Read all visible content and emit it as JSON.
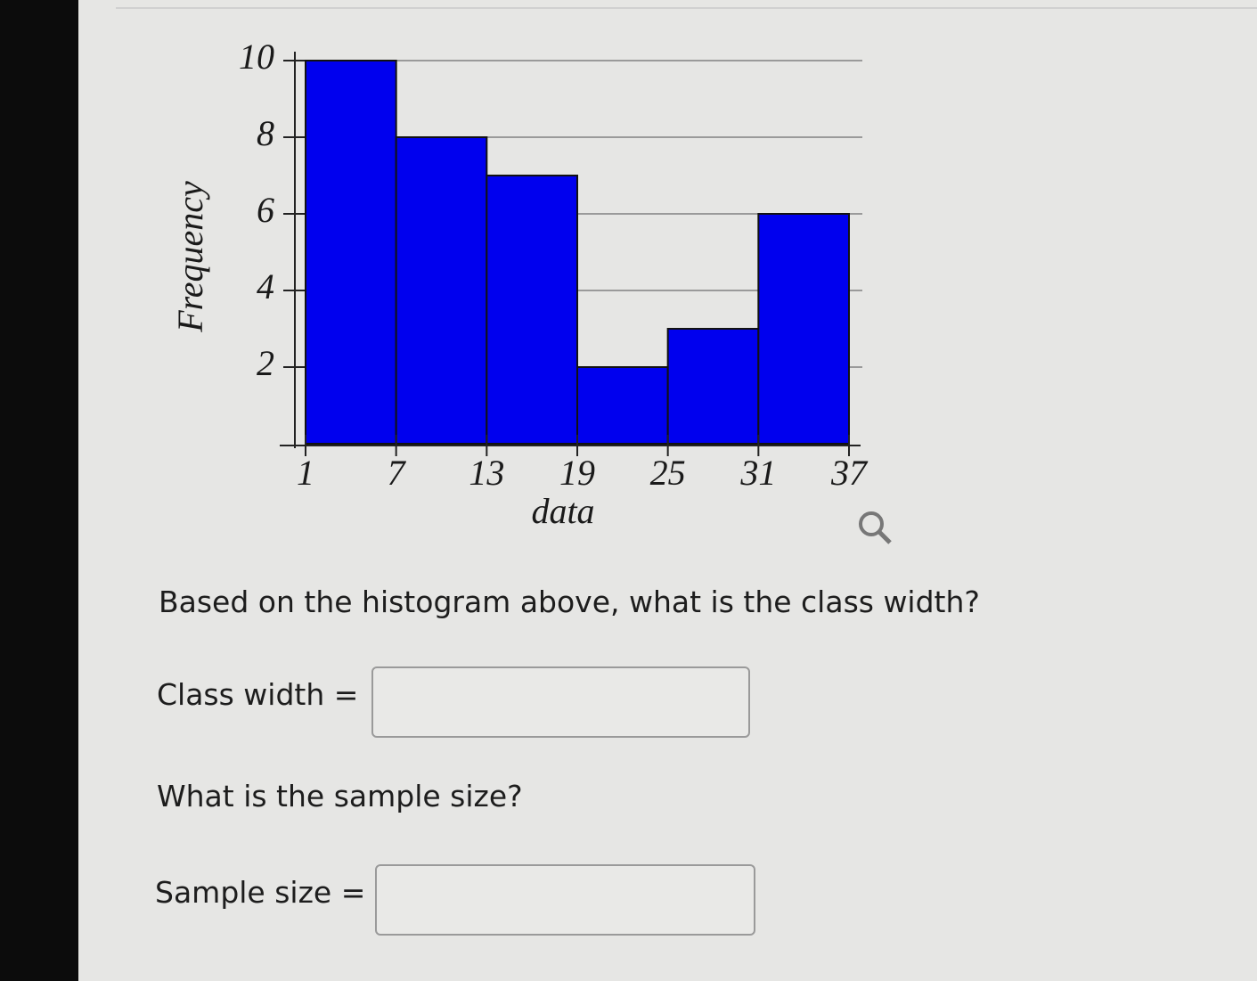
{
  "chart_data": {
    "type": "histogram",
    "xlabel": "data",
    "ylabel": "Frequency",
    "bins": [
      1,
      7,
      13,
      19,
      25,
      31,
      37
    ],
    "values": [
      10,
      8,
      7,
      2,
      3,
      6
    ],
    "color": "#0000ee",
    "xlim": [
      1,
      37
    ],
    "xticks": [
      1,
      7,
      13,
      19,
      25,
      31,
      37
    ],
    "ylim": [
      0,
      10
    ],
    "yticks": [
      2,
      4,
      6,
      8,
      10
    ],
    "grid": true
  },
  "questions": [
    {
      "prompt": "Based on the histogram above, what is the class width?",
      "label": "Class width ="
    },
    {
      "prompt": "What is the sample size?",
      "label": "Sample size ="
    }
  ]
}
